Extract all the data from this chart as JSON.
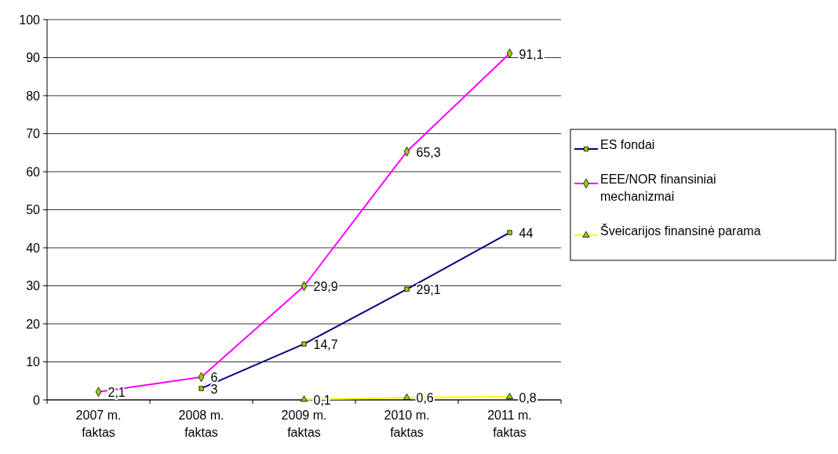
{
  "chart_data": {
    "type": "line",
    "categories": [
      "2007 m. faktas",
      "2008 m. faktas",
      "2009 m. faktas",
      "2010 m. faktas",
      "2011 m. faktas"
    ],
    "ylim": [
      0,
      100
    ],
    "yticks": [
      0,
      10,
      20,
      30,
      40,
      50,
      60,
      70,
      80,
      90,
      100
    ],
    "grid": "y",
    "legend": "right",
    "series": [
      {
        "name": "ES fondai",
        "color": "#000080",
        "marker": "square",
        "values": [
          null,
          3,
          14.7,
          29.1,
          44
        ],
        "value_labels": [
          null,
          "3",
          "14,7",
          "29,1",
          "44"
        ]
      },
      {
        "name": "EEE/NOR finansiniai mechanizmai",
        "color": "#ff00ff",
        "marker": "diamond",
        "values": [
          2.1,
          6,
          29.9,
          65.3,
          91.1
        ],
        "value_labels": [
          "2,1",
          "6",
          "29,9",
          "65,3",
          "91,1"
        ]
      },
      {
        "name": "Šveicarijos finansinė parama",
        "color": "#ffff00",
        "marker": "triangle",
        "values": [
          null,
          null,
          0.1,
          0.6,
          0.8
        ],
        "value_labels": [
          null,
          null,
          "0,1",
          "0,6",
          "0,8"
        ]
      }
    ]
  }
}
